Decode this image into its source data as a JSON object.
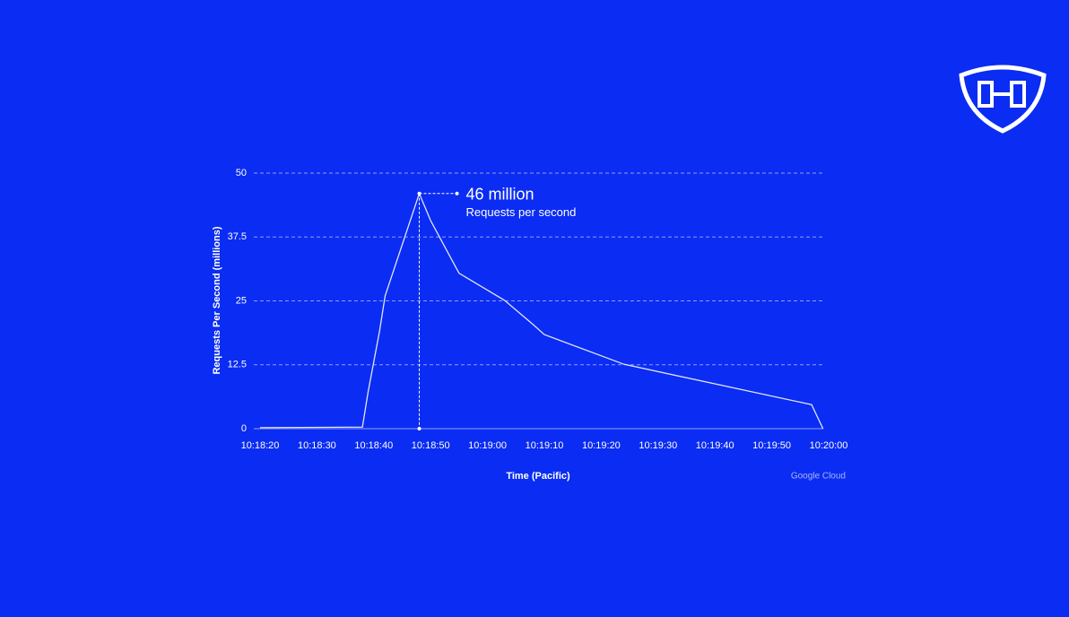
{
  "chart_data": {
    "type": "line",
    "x_label": "Time (Pacific)",
    "y_label": "Requests Per Second (millions)",
    "annotation": {
      "title": "46 million",
      "subtitle": "Requests per second"
    },
    "source": "Google Cloud",
    "x": [
      "10:18:20",
      "10:18:38",
      "10:18:39",
      "10:18:41",
      "10:18:42",
      "10:18:48",
      "10:18:50",
      "10:18:55",
      "10:19:03",
      "10:19:08",
      "10:19:10",
      "10:19:24",
      "10:19:57",
      "10:19:59"
    ],
    "series": [
      {
        "name": "Requests per second",
        "color": "#dfe6ff",
        "values": [
          0.2,
          0.3,
          7.2,
          19,
          26,
          46,
          40.7,
          30.4,
          25.1,
          20.4,
          18.4,
          12.6,
          4.7,
          0
        ]
      }
    ],
    "xlim": [
      "10:18:20",
      "10:20:00"
    ],
    "xticks": [
      "10:18:20",
      "10:18:30",
      "10:18:40",
      "10:18:50",
      "10:19:00",
      "10:19:10",
      "10:19:20",
      "10:19:30",
      "10:19:40",
      "10:19:50",
      "10:20:00"
    ],
    "ylim": [
      0,
      50
    ],
    "yticks": [
      0,
      12.5,
      25,
      37.5,
      50
    ],
    "grid": true
  }
}
